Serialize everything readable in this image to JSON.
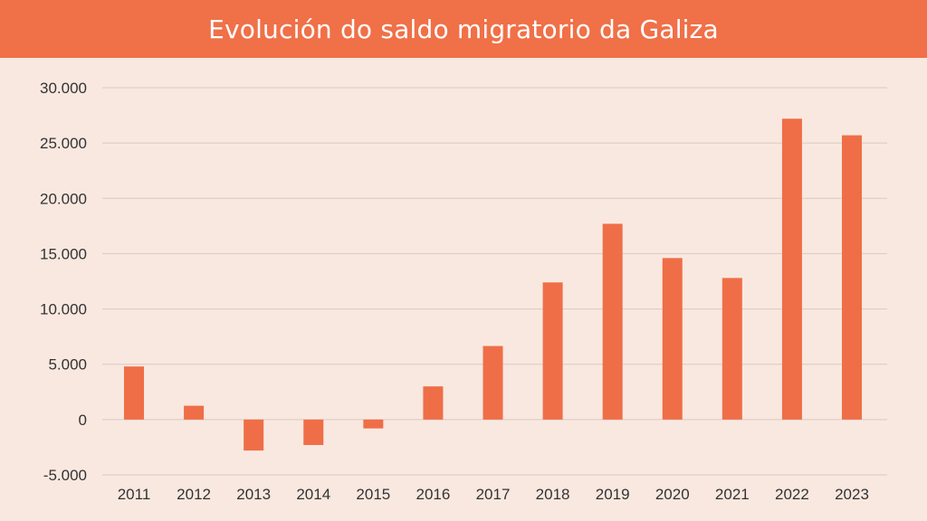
{
  "header": {
    "title": "Evolución do saldo migratorio da Galiza"
  },
  "colors": {
    "background": "#f9e8e0",
    "title_bar": "#f07048",
    "bar": "#ef6e47",
    "grid": "#dcc8c0",
    "text": "#333333"
  },
  "chart_data": {
    "type": "bar",
    "title": "Evolución do saldo migratorio da Galiza",
    "xlabel": "",
    "ylabel": "",
    "categories": [
      "2011",
      "2012",
      "2013",
      "2014",
      "2015",
      "2016",
      "2017",
      "2018",
      "2019",
      "2020",
      "2021",
      "2022",
      "2023"
    ],
    "series": [
      {
        "values": [
          4800,
          1250,
          -2800,
          -2300,
          -800,
          3000,
          6650,
          12400,
          17700,
          14600,
          12800,
          27200,
          25700
        ]
      }
    ],
    "ylim": [
      -5000,
      30000
    ],
    "yticks": [
      30000,
      25000,
      20000,
      15000,
      10000,
      5000,
      0,
      -5000
    ],
    "ytick_labels": [
      "30.000",
      "25.000",
      "20.000",
      "15.000",
      "10.000",
      "5.000",
      "0",
      "-5.000"
    ],
    "grid": true,
    "legend": "none"
  }
}
